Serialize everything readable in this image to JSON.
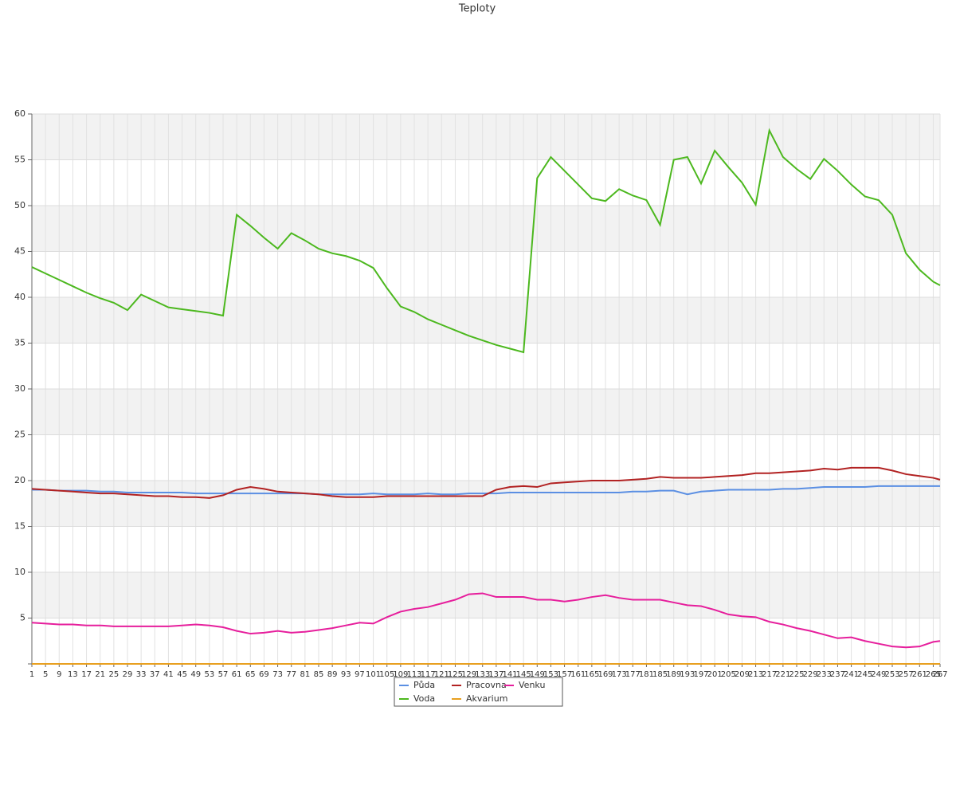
{
  "chart_data": {
    "type": "line",
    "title": "Teploty",
    "x": [
      1,
      5,
      9,
      13,
      17,
      21,
      25,
      29,
      33,
      37,
      41,
      45,
      49,
      53,
      57,
      61,
      65,
      69,
      73,
      77,
      81,
      85,
      89,
      93,
      97,
      101,
      105,
      109,
      113,
      117,
      121,
      125,
      129,
      133,
      137,
      141,
      145,
      149,
      153,
      157,
      161,
      165,
      169,
      173,
      177,
      181,
      185,
      189,
      193,
      197,
      201,
      205,
      209,
      213,
      217,
      221,
      225,
      229,
      233,
      237,
      241,
      245,
      249,
      253,
      257,
      261,
      265,
      267
    ],
    "xlim": [
      1,
      267
    ],
    "ylim": [
      0,
      60
    ],
    "yticks": [
      5,
      10,
      15,
      20,
      25,
      30,
      35,
      40,
      45,
      50,
      55,
      60
    ],
    "grid": true,
    "series": [
      {
        "name": "Půda",
        "color": "#5b8fe3",
        "values": [
          19.0,
          19.0,
          18.9,
          18.9,
          18.9,
          18.8,
          18.8,
          18.7,
          18.7,
          18.7,
          18.7,
          18.7,
          18.6,
          18.6,
          18.6,
          18.6,
          18.6,
          18.6,
          18.6,
          18.6,
          18.6,
          18.5,
          18.5,
          18.5,
          18.5,
          18.6,
          18.5,
          18.5,
          18.5,
          18.6,
          18.5,
          18.5,
          18.6,
          18.6,
          18.6,
          18.7,
          18.7,
          18.7,
          18.7,
          18.7,
          18.7,
          18.7,
          18.7,
          18.7,
          18.8,
          18.8,
          18.9,
          18.9,
          18.5,
          18.8,
          18.9,
          19.0,
          19.0,
          19.0,
          19.0,
          19.1,
          19.1,
          19.2,
          19.3,
          19.3,
          19.3,
          19.3,
          19.4,
          19.4,
          19.4,
          19.4,
          19.4,
          19.4
        ]
      },
      {
        "name": "Pracovna",
        "color": "#b22222",
        "values": [
          19.1,
          19.0,
          18.9,
          18.8,
          18.7,
          18.6,
          18.6,
          18.5,
          18.4,
          18.3,
          18.3,
          18.2,
          18.2,
          18.1,
          18.4,
          19.0,
          19.3,
          19.1,
          18.8,
          18.7,
          18.6,
          18.5,
          18.3,
          18.2,
          18.2,
          18.2,
          18.3,
          18.3,
          18.3,
          18.3,
          18.3,
          18.3,
          18.3,
          18.3,
          19.0,
          19.3,
          19.4,
          19.3,
          19.7,
          19.8,
          19.9,
          20.0,
          20.0,
          20.0,
          20.1,
          20.2,
          20.4,
          20.3,
          20.3,
          20.3,
          20.4,
          20.5,
          20.6,
          20.8,
          20.8,
          20.9,
          21.0,
          21.1,
          21.3,
          21.2,
          21.4,
          21.4,
          21.4,
          21.1,
          20.7,
          20.5,
          20.3,
          20.1
        ]
      },
      {
        "name": "Venku",
        "color": "#e61e9c",
        "values": [
          4.5,
          4.4,
          4.3,
          4.3,
          4.2,
          4.2,
          4.1,
          4.1,
          4.1,
          4.1,
          4.1,
          4.2,
          4.3,
          4.2,
          4.0,
          3.6,
          3.3,
          3.4,
          3.6,
          3.4,
          3.5,
          3.7,
          3.9,
          4.2,
          4.5,
          4.4,
          5.1,
          5.7,
          6.0,
          6.2,
          6.6,
          7.0,
          7.6,
          7.7,
          7.3,
          7.3,
          7.3,
          7.0,
          7.0,
          6.8,
          7.0,
          7.3,
          7.5,
          7.2,
          7.0,
          7.0,
          7.0,
          6.7,
          6.4,
          6.3,
          5.9,
          5.4,
          5.2,
          5.1,
          4.6,
          4.3,
          3.9,
          3.6,
          3.2,
          2.8,
          2.9,
          2.5,
          2.2,
          1.9,
          1.8,
          1.9,
          2.4,
          2.5
        ]
      },
      {
        "name": "Voda",
        "color": "#4cb81e",
        "values": [
          43.3,
          42.6,
          41.9,
          41.2,
          40.5,
          39.9,
          39.4,
          38.6,
          40.3,
          39.6,
          38.9,
          38.7,
          38.5,
          38.3,
          38.0,
          49.0,
          47.8,
          46.5,
          45.3,
          47.0,
          46.2,
          45.3,
          44.8,
          44.5,
          44.0,
          43.2,
          41.0,
          39.0,
          38.4,
          37.6,
          37.0,
          36.4,
          35.8,
          35.3,
          34.8,
          34.4,
          34.0,
          53.0,
          55.3,
          53.8,
          52.3,
          50.8,
          50.5,
          51.8,
          51.1,
          50.6,
          47.9,
          55.0,
          55.3,
          52.4,
          56.0,
          54.2,
          52.5,
          50.1,
          58.2,
          55.3,
          54.0,
          52.9,
          55.1,
          53.8,
          52.3,
          51.0,
          50.6,
          49.0,
          44.8,
          43.0,
          41.7,
          41.3
        ]
      },
      {
        "name": "Akvarium",
        "color": "#e8a020",
        "values": [
          0,
          0,
          0,
          0,
          0,
          0,
          0,
          0,
          0,
          0,
          0,
          0,
          0,
          0,
          0,
          0,
          0,
          0,
          0,
          0,
          0,
          0,
          0,
          0,
          0,
          0,
          0,
          0,
          0,
          0,
          0,
          0,
          0,
          0,
          0,
          0,
          0,
          0,
          0,
          0,
          0,
          0,
          0,
          0,
          0,
          0,
          0,
          0,
          0,
          0,
          0,
          0,
          0,
          0,
          0,
          0,
          0,
          0,
          0,
          0,
          0,
          0,
          0,
          0,
          0,
          0,
          0,
          0
        ]
      }
    ]
  }
}
